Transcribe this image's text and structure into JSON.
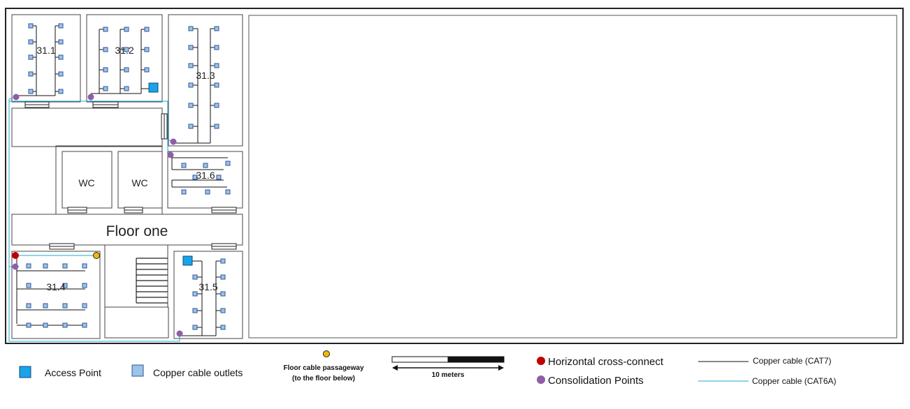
{
  "floor_label": "Floor one",
  "rooms": {
    "r311": "31.1",
    "r312": "31.2",
    "r313": "31.3",
    "r314": "31.4",
    "r315": "31.5",
    "r316": "31.6",
    "wc1": "WC",
    "wc2": "WC"
  },
  "legend": {
    "access_point": "Access Point",
    "copper_outlets": "Copper cable outlets",
    "floor_passage_line1": "Floor cable passageway",
    "floor_passage_line2": "(to the floor below)",
    "scale_label": "10 meters",
    "horizontal_cross_connect": "Horizontal cross-connect",
    "consolidation_points": "Consolidation Points",
    "cat7": "Copper cable (CAT7)",
    "cat6a": "Copper cable (CAT6A)"
  },
  "colors": {
    "access_point": "#1aa3e8",
    "outlet_fill": "#9dc3e6",
    "outlet_stroke": "#2f5597",
    "cross_connect": "#c00000",
    "consolidation": "#8e5ea8",
    "passageway": "#f5b800",
    "cat6a": "#1fa8d8",
    "cat7": "#000000"
  }
}
